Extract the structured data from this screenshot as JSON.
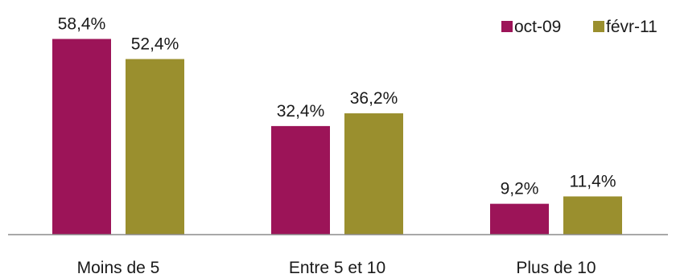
{
  "chart_data": {
    "type": "bar",
    "categories": [
      "Moins de 5",
      "Entre 5 et 10",
      "Plus de 10"
    ],
    "series": [
      {
        "name": "oct-09",
        "values": [
          58.4,
          32.4,
          9.2
        ],
        "labels": [
          "58,4%",
          "32,4%",
          "9,2%"
        ],
        "color": "#9c1458"
      },
      {
        "name": "févr-11",
        "values": [
          52.4,
          36.2,
          11.4
        ],
        "labels": [
          "52,4%",
          "36,2%",
          "11,4%"
        ],
        "color": "#9a8f2e"
      }
    ],
    "title": "",
    "xlabel": "",
    "ylabel": "",
    "ylim": [
      0,
      60
    ],
    "grid": false,
    "legend": "top-right",
    "axis_color": "#8c8c8c"
  }
}
